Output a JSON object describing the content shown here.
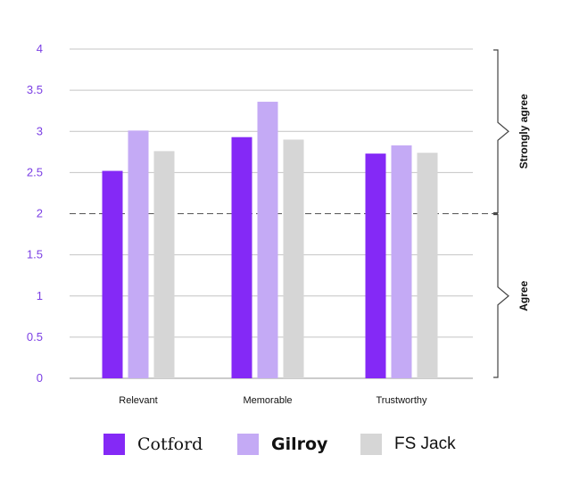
{
  "chart_data": {
    "type": "bar",
    "categories": [
      "Relevant",
      "Memorable",
      "Trustworthy"
    ],
    "series": [
      {
        "name": "Cotford",
        "color": "#8429f6",
        "values": [
          2.52,
          2.93,
          2.73
        ]
      },
      {
        "name": "Gilroy",
        "color": "#c4aaf5",
        "values": [
          3.01,
          3.36,
          2.83
        ]
      },
      {
        "name": "FS Jack",
        "color": "#d6d6d6",
        "values": [
          2.76,
          2.9,
          2.74
        ]
      }
    ],
    "ylim": [
      0,
      4
    ],
    "yticks": [
      "0",
      "0.5",
      "1",
      "1.5",
      "2",
      "2.5",
      "3",
      "3.5",
      "4"
    ],
    "grid": true,
    "reference_line": {
      "value": 2,
      "style": "dashed"
    },
    "brackets": [
      {
        "label": "Agree",
        "range": [
          0,
          2
        ]
      },
      {
        "label": "Strongly agree",
        "range": [
          2,
          4
        ]
      }
    ],
    "legend_position": "bottom",
    "tick_color": "#7b3fe4"
  }
}
